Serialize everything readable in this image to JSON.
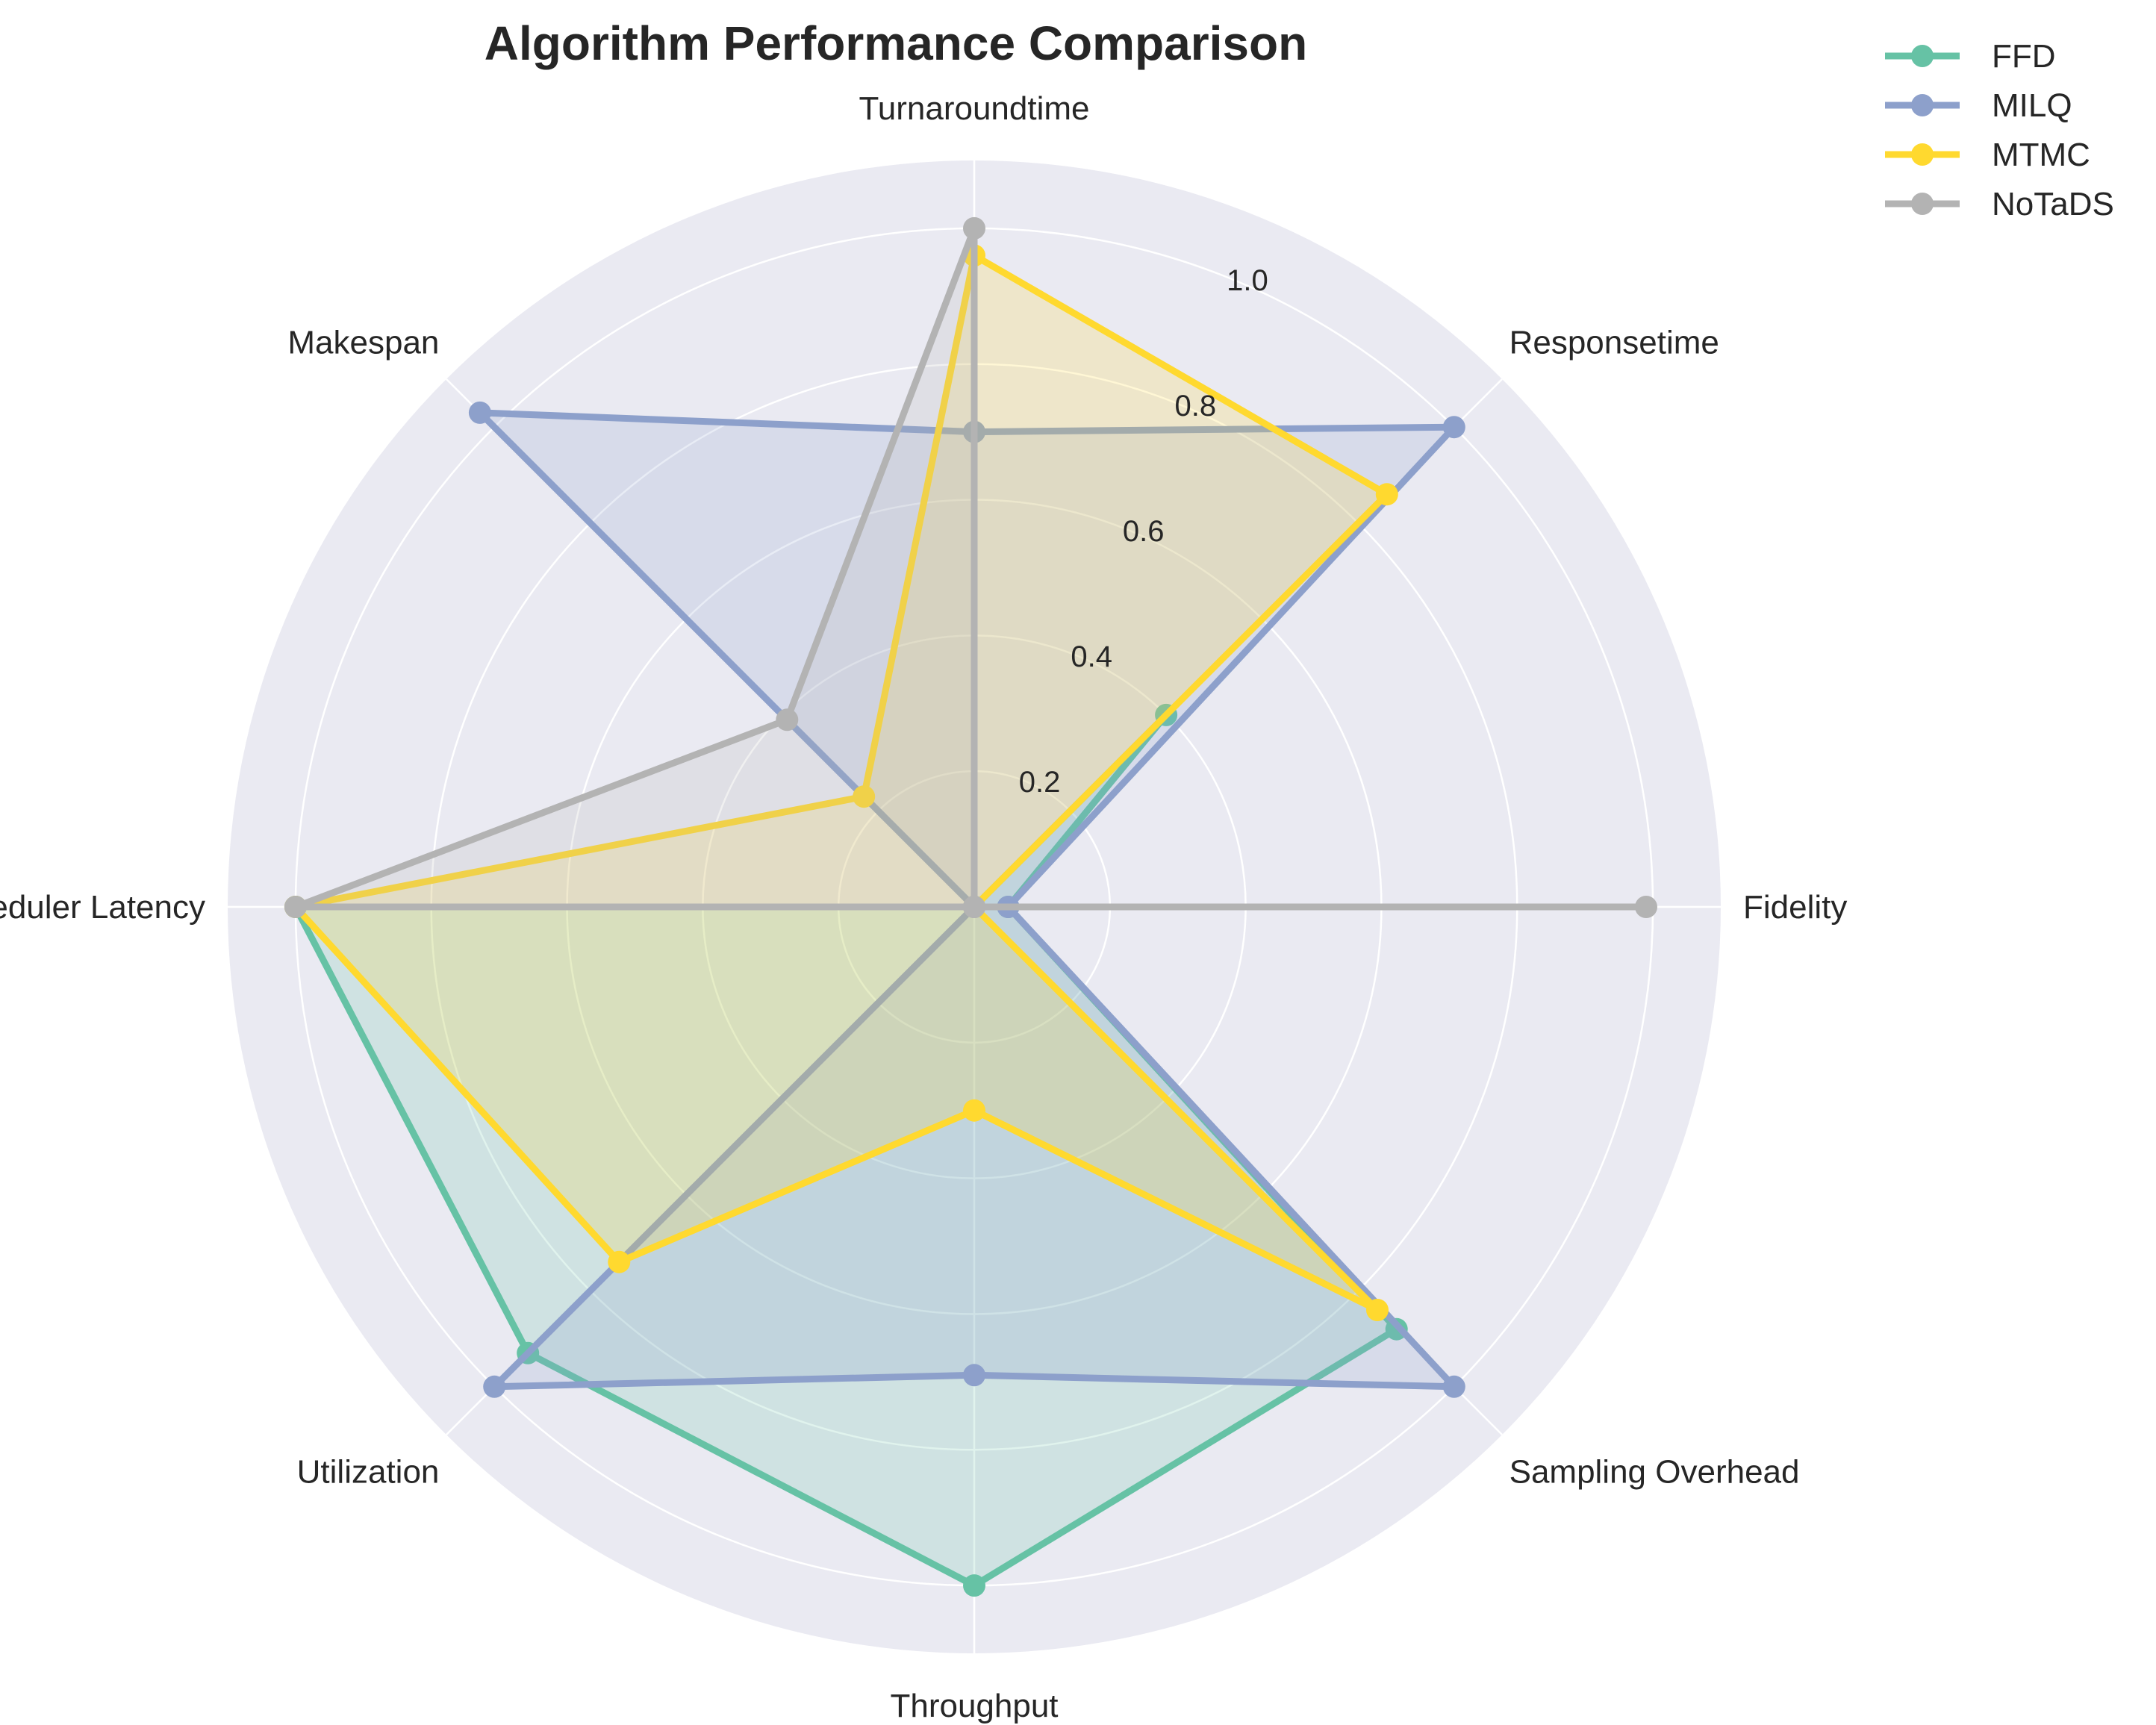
{
  "chart_data": {
    "type": "radar",
    "title": "Algorithm Performance Comparison",
    "categories": [
      "Turnaroundtime",
      "Responsetime",
      "Fidelity",
      "Sampling Overhead",
      "Throughput",
      "Utilization",
      "Scheduler Latency",
      "Makespan"
    ],
    "rticks": [
      0.2,
      0.4,
      0.6,
      0.8,
      1.0
    ],
    "rtick_labels": [
      "0.2",
      "0.4",
      "0.6",
      "0.8",
      "1.0"
    ],
    "rlim": [
      0,
      1.1
    ],
    "grid": true,
    "legend_position": "top-right",
    "series": [
      {
        "name": "FFD",
        "color": "#66c2a5",
        "values": [
          0.0,
          0.4,
          0.05,
          0.88,
          1.0,
          0.93,
          1.0,
          0.0
        ]
      },
      {
        "name": "MILQ",
        "color": "#8da0cb",
        "values": [
          0.7,
          1.0,
          0.05,
          1.0,
          0.69,
          1.0,
          0.0,
          1.03
        ]
      },
      {
        "name": "MTMC",
        "color": "#ffd92f",
        "values": [
          0.96,
          0.86,
          0.0,
          0.84,
          0.3,
          0.74,
          1.0,
          0.23
        ]
      },
      {
        "name": "NoTaDS",
        "color": "#b3b3b3",
        "values": [
          1.0,
          0.0,
          0.99,
          0.0,
          0.0,
          0.0,
          1.0,
          0.39
        ]
      }
    ]
  }
}
